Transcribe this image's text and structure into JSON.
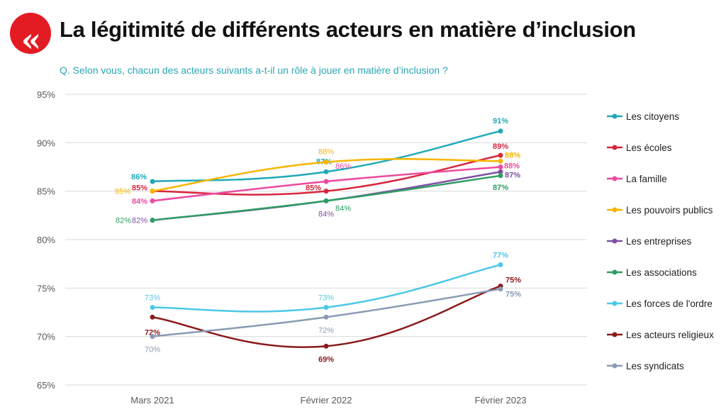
{
  "header": {
    "logo_glyph": "«",
    "title": "La légitimité de différents acteurs en matière d’inclusion",
    "subtitle": "Q. Selon vous, chacun des acteurs suivants a-t-il un rôle à jouer en matière d’inclusion ?"
  },
  "chart_data": {
    "type": "line",
    "title": "La légitimité de différents acteurs en matière d’inclusion",
    "subtitle": "Q. Selon vous, chacun des acteurs suivants a-t-il un rôle à jouer en matière d’inclusion ?",
    "categories": [
      "Mars 2021",
      "Février 2022",
      "Février 2023"
    ],
    "ylim": [
      65,
      95
    ],
    "yticks": [
      65,
      70,
      75,
      80,
      85,
      90,
      95
    ],
    "ytick_labels": [
      "65%",
      "70%",
      "75%",
      "80%",
      "85%",
      "90%",
      "95%"
    ],
    "grid": "horizontal",
    "legend": "right",
    "series": [
      {
        "name": "Les citoyens",
        "color": "#1fa9b8",
        "values": [
          86,
          87,
          91.2
        ],
        "labels": [
          "86%",
          "87%",
          "91%"
        ]
      },
      {
        "name": "Les écoles",
        "color": "#d7263d",
        "values": [
          85,
          85,
          88.7
        ],
        "labels": [
          "85%",
          "85%",
          "89%"
        ]
      },
      {
        "name": "La famille",
        "color": "#ec4aa0",
        "values": [
          84,
          86,
          87.5
        ],
        "labels": [
          "84%",
          "86%",
          "88%"
        ]
      },
      {
        "name": "Les pouvoirs publics",
        "color": "#f7b500",
        "values": [
          85,
          88,
          88.1
        ],
        "labels": [
          "85%",
          "88%",
          "88%"
        ]
      },
      {
        "name": "Les entreprises",
        "color": "#7d4fa3",
        "values": [
          82,
          84,
          87
        ],
        "labels": [
          "82%",
          "84%",
          "87%"
        ]
      },
      {
        "name": "Les associations",
        "color": "#2e9e63",
        "values": [
          82,
          84,
          86.6
        ],
        "labels": [
          "82%",
          "84%",
          "87%"
        ]
      },
      {
        "name": "Les forces de l'ordre",
        "color": "#4cc8e6",
        "values": [
          73,
          73,
          77.4
        ],
        "labels": [
          "73%",
          "73%",
          "77%"
        ]
      },
      {
        "name": "Les acteurs religieux",
        "color": "#8b1a1a",
        "values": [
          72,
          69,
          75.2
        ],
        "labels": [
          "72%",
          "69%",
          "75%"
        ]
      },
      {
        "name": "Les syndicats",
        "color": "#8a9bb3",
        "values": [
          70,
          72,
          74.9
        ],
        "labels": [
          "70%",
          "72%",
          "75%"
        ]
      }
    ]
  }
}
